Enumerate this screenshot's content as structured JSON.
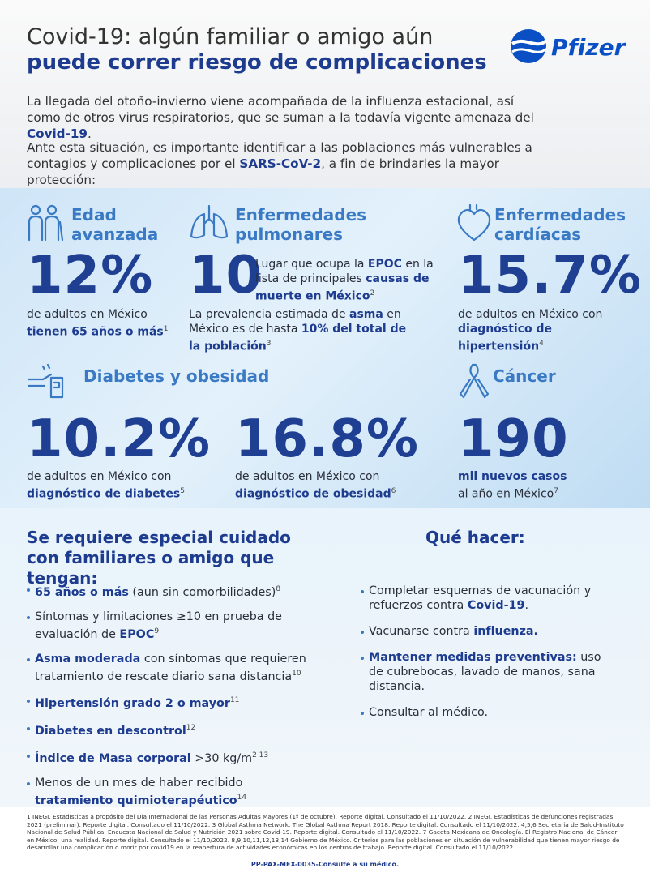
{
  "header": {
    "title_line1": "Covid-19: algún familiar o amigo aún",
    "title_line2": "puede correr riesgo de complicaciones",
    "logo": "Pfizer"
  },
  "intro": {
    "p1": [
      "La llegada del otoño-invierno viene acompañada de la influenza estacional, así como de otros virus respiratorios, que se suman a la todavía vigente amenaza del ",
      "Covid-19",
      "."
    ],
    "p2": [
      "Ante esta situación, es importante identificar a las poblaciones más vulnerables a contagios y complicaciones por el ",
      "SARS-CoV-2",
      ", a fin de brindarles la mayor protección:"
    ]
  },
  "stats": {
    "edad": {
      "heading": "Edad avanzada",
      "figure": "12%",
      "text": [
        "de adultos en México ",
        "tienen 65 años o más",
        "1"
      ]
    },
    "pulmonares": {
      "heading": "Enfermedades pulmonares",
      "figure": "10",
      "side": [
        "Lugar que ocupa la ",
        "EPOC",
        " en la lista de principales ",
        "causas de muerte en México",
        "2"
      ],
      "text": [
        "La prevalencia estimada de ",
        "asma",
        " en México es de hasta ",
        "10% del total de la población",
        "3"
      ]
    },
    "cardiacas": {
      "heading": "Enfermedades cardíacas",
      "figure": "15.7%",
      "text": [
        "de adultos en México con ",
        "diagnóstico de hipertensión",
        "4"
      ]
    },
    "diabetes": {
      "heading": "Diabetes y obesidad",
      "items": [
        {
          "figure": "10.2%",
          "text": [
            "de adultos en México con ",
            "diagnóstico de diabetes",
            "5"
          ]
        },
        {
          "figure": "16.8%",
          "text": [
            "de adultos en México con ",
            "diagnóstico de obesidad",
            "6"
          ]
        }
      ]
    },
    "cancer": {
      "heading": "Cáncer",
      "figure": "190",
      "text": [
        "mil nuevos casos",
        " al año en México",
        "7"
      ]
    }
  },
  "care": {
    "heading": "Se requiere especial cuidado con familiares o amigo que tengan:",
    "items": [
      [
        "65 años o más",
        " (aun sin comorbilidades)",
        "8"
      ],
      [
        "Síntomas y limitaciones ≥10 en prueba de evaluación de ",
        "EPOC",
        "9"
      ],
      [
        "Asma moderada",
        " con síntomas que requieren tratamiento de rescate diario sana distancia",
        "10"
      ],
      [
        "Hipertensión grado 2 o mayor",
        "11"
      ],
      [
        "Diabetes en descontrol",
        "12"
      ],
      [
        "Índice de Masa corporal",
        " >30 kg/m",
        "2 13"
      ],
      [
        "Menos de un mes de haber recibido ",
        "tratamiento quimioterapéutico",
        "14"
      ]
    ]
  },
  "todo": {
    "heading": "Qué hacer:",
    "items": [
      [
        "Completar esquemas de vacunación y refuerzos contra ",
        "Covid-19",
        "."
      ],
      [
        "Vacunarse contra ",
        "influenza."
      ],
      [
        "Mantener medidas preventivas:",
        " uso de cubrebocas, lavado de manos, sana distancia."
      ],
      [
        "Consultar al médico."
      ]
    ]
  },
  "footnotes": "1 INEGI. Estadísticas a propósito del Día Internacional de las Personas Adultas Mayores (1º de octubre). Reporte digital. Consultado el 11/10/2022. 2 INEGI. Estadísticas de defunciones registradas 2021 (preliminar). Reporte digital. Consultado el 11/10/2022. 3 Global Asthma Network. The Global Asthma Report 2018. Reporte digital. Consultado el 11/10/2022. 4,5,6 Secretaría de Salud-Instituto Nacional de Salud Pública. Encuesta Nacional de Salud y Nutrición 2021 sobre Covid-19. Reporte digital. Consultado el 11/10/2022. 7 Gaceta Mexicana de Oncología. El Registro Nacional de Cáncer en México: una realidad. Reporte digital. Consultado el 11/10/2022. 8,9,10,11,12,13,14 Gobierno de México. Criterios para las poblaciones en situación de vulnerabilidad que tienen mayor riesgo de desarrollar una complicación o morir por covid19 en la reapertura de actividades económicas en los centros de trabajo. Reporte digital. Consultado el 11/10/2022.",
  "code": "PP-PAX-MEX-0035-Consulte a su médico."
}
